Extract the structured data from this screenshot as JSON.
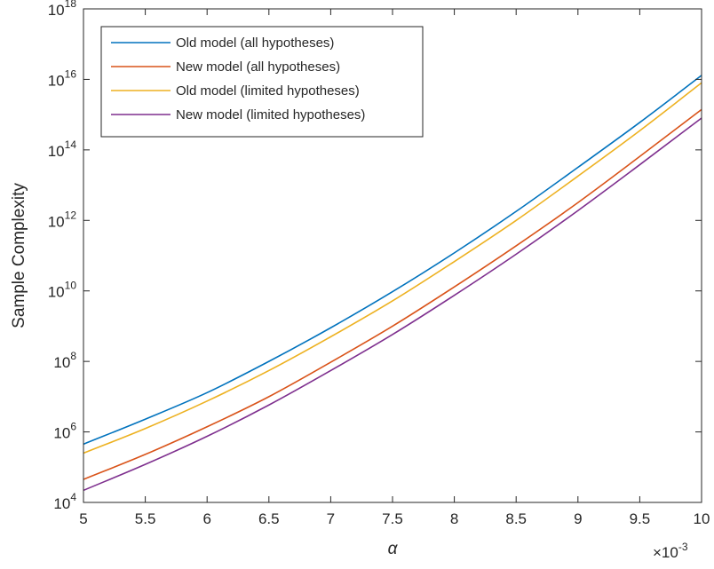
{
  "chart_data": {
    "type": "line",
    "title": "",
    "xlabel": "α",
    "ylabel": "Sample Complexity",
    "x_multiplier_label": "×10",
    "x_multiplier_exponent": "-3",
    "xlim": [
      5,
      10
    ],
    "ylim": [
      10000,
      1e+18
    ],
    "yscale": "log",
    "grid": false,
    "legend_position": "top-left",
    "x_ticks": [
      {
        "value": 5,
        "label": "5"
      },
      {
        "value": 5.5,
        "label": "5.5"
      },
      {
        "value": 6,
        "label": "6"
      },
      {
        "value": 6.5,
        "label": "6.5"
      },
      {
        "value": 7,
        "label": "7"
      },
      {
        "value": 7.5,
        "label": "7.5"
      },
      {
        "value": 8,
        "label": "8"
      },
      {
        "value": 8.5,
        "label": "8.5"
      },
      {
        "value": 9,
        "label": "9"
      },
      {
        "value": 9.5,
        "label": "9.5"
      },
      {
        "value": 10,
        "label": "10"
      }
    ],
    "y_ticks": [
      {
        "value": 10000,
        "base": "10",
        "exponent": "4"
      },
      {
        "value": 1000000,
        "base": "10",
        "exponent": "6"
      },
      {
        "value": 100000000,
        "base": "10",
        "exponent": "8"
      },
      {
        "value": 10000000000,
        "base": "10",
        "exponent": "10"
      },
      {
        "value": 1000000000000,
        "base": "10",
        "exponent": "12"
      },
      {
        "value": 100000000000000,
        "base": "10",
        "exponent": "14"
      },
      {
        "value": 10000000000000000,
        "base": "10",
        "exponent": "16"
      },
      {
        "value": 1000000000000000000,
        "base": "10",
        "exponent": "18"
      }
    ],
    "x": [
      5,
      5.5,
      6,
      6.5,
      7,
      7.5,
      8,
      8.5,
      9,
      9.5,
      10
    ],
    "series": [
      {
        "name": "Old model (all hypotheses)",
        "color": "#0072BD",
        "values": [
          450000,
          2300000,
          13000000,
          100000000,
          900000000,
          9500000000,
          120000000000,
          1800000000000,
          32000000000000,
          600000000000000,
          13000000000000000
        ]
      },
      {
        "name": "New model (all hypotheses)",
        "color": "#D95319",
        "values": [
          45000,
          230000,
          1400000,
          10000000,
          95000000,
          1000000000,
          13000000000,
          190000000000,
          3200000000000,
          65000000000000,
          1400000000000000
        ]
      },
      {
        "name": "Old model (limited hypotheses)",
        "color": "#EDB120",
        "values": [
          250000,
          1250000,
          7500000,
          55000000,
          500000000,
          5200000000,
          68000000000,
          1000000000000,
          18000000000000,
          350000000000000,
          8000000000000000
        ]
      },
      {
        "name": "New model (limited hypotheses)",
        "color": "#7E2F8E",
        "values": [
          22000,
          120000,
          750000,
          5800000,
          55000000,
          580000000,
          7500000000,
          110000000000,
          1900000000000,
          38000000000000,
          800000000000000
        ]
      }
    ]
  }
}
